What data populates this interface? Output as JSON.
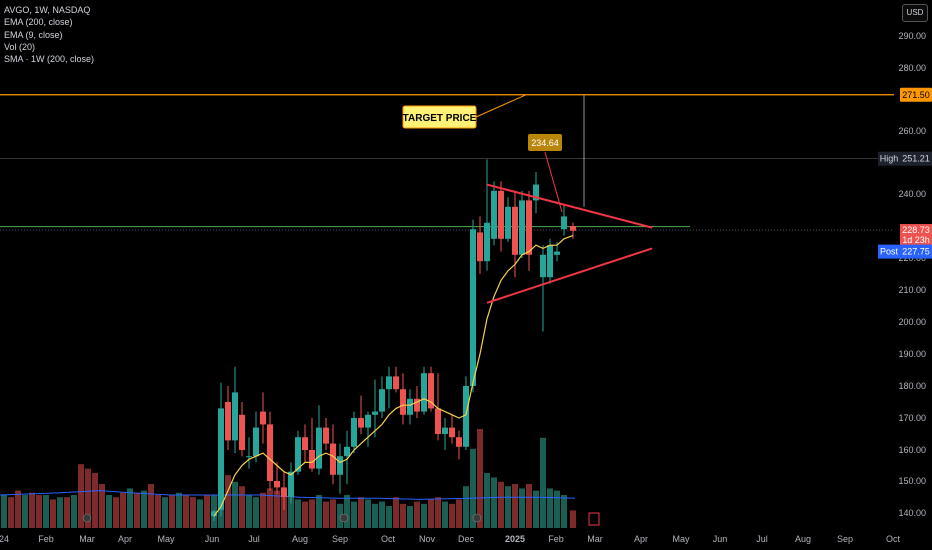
{
  "legend": {
    "symbol": "AVGO, 1W, NASDAQ",
    "ema200": "EMA (200, close)",
    "ema9": "EMA (9, close)",
    "vol": "Vol (20)",
    "sma": "SMA · 1W (200, close)"
  },
  "currency": "USD",
  "colors": {
    "up": "#26a69a",
    "down": "#ef5350",
    "vol_up": "#1b5e54",
    "vol_down": "#7c2a2a",
    "ema9": "#f6d24e",
    "vol_ma": "#2962ff",
    "target_line": "#ff9800",
    "green_line": "#4caf50",
    "triangle": "#f23645",
    "annotation_bg": "#fff176",
    "price_label_bg": "#b8860b"
  },
  "chart_data": {
    "type": "candlestick",
    "x_axis_labels": [
      "24",
      "Feb",
      "Mar",
      "Apr",
      "May",
      "Jun",
      "Jul",
      "Aug",
      "Sep",
      "Oct",
      "Nov",
      "Dec",
      "2025",
      "Feb",
      "Mar",
      "Apr",
      "May",
      "Jun",
      "Jul",
      "Aug",
      "Sep",
      "Oct"
    ],
    "y_ticks": [
      140,
      150,
      160,
      170,
      180,
      190,
      200,
      210,
      220,
      240,
      260,
      280,
      290
    ],
    "ylim": [
      137,
      297
    ],
    "weeks": [
      {
        "x": 214,
        "o": 139,
        "h": 141,
        "l": 137.5,
        "c": 140.5,
        "v": 0.3
      },
      {
        "x": 221,
        "o": 141,
        "h": 181,
        "l": 139,
        "c": 173,
        "v": 0.55
      },
      {
        "x": 228,
        "o": 175,
        "h": 180,
        "l": 160,
        "c": 163,
        "v": 0.48
      },
      {
        "x": 235,
        "o": 163,
        "h": 186,
        "l": 159,
        "c": 178,
        "v": 0.42
      },
      {
        "x": 242,
        "o": 171,
        "h": 175,
        "l": 158,
        "c": 160,
        "v": 0.38
      },
      {
        "x": 249,
        "o": 158,
        "h": 164,
        "l": 154,
        "c": 158,
        "v": 0.3
      },
      {
        "x": 256,
        "o": 158,
        "h": 172,
        "l": 156,
        "c": 167,
        "v": 0.28
      },
      {
        "x": 263,
        "o": 172,
        "h": 178,
        "l": 162,
        "c": 168,
        "v": 0.32
      },
      {
        "x": 270,
        "o": 168,
        "h": 172,
        "l": 147,
        "c": 150,
        "v": 0.36
      },
      {
        "x": 277,
        "o": 150,
        "h": 156,
        "l": 146,
        "c": 148,
        "v": 0.34
      },
      {
        "x": 284,
        "o": 148,
        "h": 153,
        "l": 141,
        "c": 145,
        "v": 0.3
      },
      {
        "x": 291,
        "o": 145,
        "h": 156,
        "l": 143,
        "c": 153,
        "v": 0.28
      },
      {
        "x": 298,
        "o": 153,
        "h": 166,
        "l": 152,
        "c": 164,
        "v": 0.26
      },
      {
        "x": 305,
        "o": 164,
        "h": 168,
        "l": 156,
        "c": 160,
        "v": 0.24
      },
      {
        "x": 312,
        "o": 160,
        "h": 170,
        "l": 153,
        "c": 154,
        "v": 0.26
      },
      {
        "x": 319,
        "o": 154,
        "h": 174,
        "l": 152,
        "c": 167,
        "v": 0.3
      },
      {
        "x": 326,
        "o": 167,
        "h": 170,
        "l": 160,
        "c": 162,
        "v": 0.24
      },
      {
        "x": 333,
        "o": 162,
        "h": 168,
        "l": 149,
        "c": 152,
        "v": 0.26
      },
      {
        "x": 340,
        "o": 152,
        "h": 162,
        "l": 146,
        "c": 158,
        "v": 0.22
      },
      {
        "x": 347,
        "o": 158,
        "h": 166,
        "l": 149,
        "c": 161,
        "v": 0.3
      },
      {
        "x": 354,
        "o": 161,
        "h": 172,
        "l": 159,
        "c": 170,
        "v": 0.24
      },
      {
        "x": 361,
        "o": 170,
        "h": 177,
        "l": 165,
        "c": 167,
        "v": 0.28
      },
      {
        "x": 368,
        "o": 167,
        "h": 172,
        "l": 161,
        "c": 171,
        "v": 0.26
      },
      {
        "x": 375,
        "o": 171,
        "h": 182,
        "l": 164,
        "c": 172,
        "v": 0.22
      },
      {
        "x": 382,
        "o": 172,
        "h": 183,
        "l": 170,
        "c": 179,
        "v": 0.24
      },
      {
        "x": 389,
        "o": 179,
        "h": 186,
        "l": 173,
        "c": 183,
        "v": 0.2
      },
      {
        "x": 396,
        "o": 183,
        "h": 186,
        "l": 178,
        "c": 179,
        "v": 0.28
      },
      {
        "x": 403,
        "o": 179,
        "h": 184,
        "l": 168,
        "c": 171,
        "v": 0.22
      },
      {
        "x": 410,
        "o": 171,
        "h": 179,
        "l": 168,
        "c": 176,
        "v": 0.2
      },
      {
        "x": 417,
        "o": 176,
        "h": 180,
        "l": 170,
        "c": 172,
        "v": 0.24
      },
      {
        "x": 424,
        "o": 172,
        "h": 186,
        "l": 171,
        "c": 184,
        "v": 0.22
      },
      {
        "x": 431,
        "o": 184,
        "h": 186,
        "l": 172,
        "c": 173,
        "v": 0.26
      },
      {
        "x": 438,
        "o": 173,
        "h": 184,
        "l": 163,
        "c": 165,
        "v": 0.28
      },
      {
        "x": 445,
        "o": 165,
        "h": 170,
        "l": 160,
        "c": 167,
        "v": 0.24
      },
      {
        "x": 452,
        "o": 167,
        "h": 171,
        "l": 162,
        "c": 164,
        "v": 0.22
      },
      {
        "x": 459,
        "o": 164,
        "h": 166,
        "l": 157,
        "c": 161,
        "v": 0.26
      },
      {
        "x": 466,
        "o": 161,
        "h": 183,
        "l": 160,
        "c": 180,
        "v": 0.38
      },
      {
        "x": 473,
        "o": 180,
        "h": 232,
        "l": 178,
        "c": 229,
        "v": 0.72
      },
      {
        "x": 480,
        "o": 228,
        "h": 233,
        "l": 215,
        "c": 219,
        "v": 0.9
      },
      {
        "x": 487,
        "o": 219,
        "h": 251,
        "l": 216,
        "c": 231,
        "v": 0.5
      },
      {
        "x": 494,
        "o": 226,
        "h": 244,
        "l": 224,
        "c": 241,
        "v": 0.46
      },
      {
        "x": 501,
        "o": 241,
        "h": 244,
        "l": 222,
        "c": 226,
        "v": 0.42
      },
      {
        "x": 508,
        "o": 226,
        "h": 239,
        "l": 225,
        "c": 236,
        "v": 0.38
      },
      {
        "x": 515,
        "o": 236,
        "h": 241,
        "l": 214,
        "c": 221,
        "v": 0.4
      },
      {
        "x": 522,
        "o": 221,
        "h": 241,
        "l": 220,
        "c": 238,
        "v": 0.36
      },
      {
        "x": 529,
        "o": 238,
        "h": 241,
        "l": 216,
        "c": 221,
        "v": 0.4
      },
      {
        "x": 536,
        "o": 238,
        "h": 247,
        "l": 234,
        "c": 243,
        "v": 0.34
      },
      {
        "x": 543,
        "o": 214,
        "h": 224,
        "l": 197,
        "c": 221,
        "v": 0.82
      },
      {
        "x": 550,
        "o": 214,
        "h": 226,
        "l": 212,
        "c": 224,
        "v": 0.36
      },
      {
        "x": 557,
        "o": 221,
        "h": 225,
        "l": 219,
        "c": 222,
        "v": 0.34
      },
      {
        "x": 564,
        "o": 229,
        "h": 237,
        "l": 227,
        "c": 233,
        "v": 0.3
      },
      {
        "x": 573,
        "o": 230,
        "h": 231,
        "l": 226,
        "c": 228.5,
        "v": 0.16
      }
    ],
    "ema9": [
      [
        214,
        139
      ],
      [
        221,
        142
      ],
      [
        228,
        147
      ],
      [
        235,
        152
      ],
      [
        242,
        155
      ],
      [
        249,
        157
      ],
      [
        256,
        158
      ],
      [
        263,
        159
      ],
      [
        270,
        157
      ],
      [
        277,
        155
      ],
      [
        284,
        153
      ],
      [
        291,
        152
      ],
      [
        298,
        154
      ],
      [
        305,
        156
      ],
      [
        312,
        156
      ],
      [
        319,
        158
      ],
      [
        326,
        159
      ],
      [
        333,
        158
      ],
      [
        340,
        156
      ],
      [
        347,
        157
      ],
      [
        354,
        160
      ],
      [
        361,
        162
      ],
      [
        368,
        164
      ],
      [
        375,
        166
      ],
      [
        382,
        168
      ],
      [
        389,
        171
      ],
      [
        396,
        173
      ],
      [
        403,
        174
      ],
      [
        410,
        174
      ],
      [
        417,
        175
      ],
      [
        424,
        176
      ],
      [
        431,
        175
      ],
      [
        438,
        173
      ],
      [
        445,
        172
      ],
      [
        452,
        171
      ],
      [
        459,
        170
      ],
      [
        466,
        171
      ],
      [
        473,
        181
      ],
      [
        480,
        190
      ],
      [
        487,
        201
      ],
      [
        494,
        208
      ],
      [
        501,
        213
      ],
      [
        508,
        216
      ],
      [
        515,
        218
      ],
      [
        522,
        221
      ],
      [
        529,
        222
      ],
      [
        536,
        224
      ],
      [
        543,
        223
      ],
      [
        550,
        224
      ],
      [
        557,
        224
      ],
      [
        564,
        226
      ],
      [
        573,
        227
      ]
    ],
    "vol_ma": [
      [
        0,
        0.3
      ],
      [
        60,
        0.32
      ],
      [
        100,
        0.34
      ],
      [
        130,
        0.32
      ],
      [
        170,
        0.3
      ],
      [
        214,
        0.3
      ],
      [
        260,
        0.3
      ],
      [
        300,
        0.28
      ],
      [
        340,
        0.27
      ],
      [
        380,
        0.27
      ],
      [
        420,
        0.26
      ],
      [
        470,
        0.27
      ],
      [
        500,
        0.28
      ],
      [
        540,
        0.28
      ],
      [
        575,
        0.27
      ]
    ],
    "vol_bars_left": [
      {
        "x": 4,
        "v": 0.3,
        "up": true
      },
      {
        "x": 11,
        "v": 0.28,
        "up": false
      },
      {
        "x": 18,
        "v": 0.34,
        "up": false
      },
      {
        "x": 25,
        "v": 0.3,
        "up": true
      },
      {
        "x": 32,
        "v": 0.32,
        "up": false
      },
      {
        "x": 39,
        "v": 0.3,
        "up": false
      },
      {
        "x": 46,
        "v": 0.3,
        "up": true
      },
      {
        "x": 53,
        "v": 0.26,
        "up": false
      },
      {
        "x": 60,
        "v": 0.28,
        "up": true
      },
      {
        "x": 67,
        "v": 0.28,
        "up": false
      },
      {
        "x": 74,
        "v": 0.3,
        "up": true
      },
      {
        "x": 81,
        "v": 0.58,
        "up": false
      },
      {
        "x": 88,
        "v": 0.54,
        "up": false
      },
      {
        "x": 95,
        "v": 0.5,
        "up": false
      },
      {
        "x": 102,
        "v": 0.4,
        "up": false
      },
      {
        "x": 109,
        "v": 0.3,
        "up": true
      },
      {
        "x": 116,
        "v": 0.28,
        "up": false
      },
      {
        "x": 123,
        "v": 0.32,
        "up": false
      },
      {
        "x": 130,
        "v": 0.36,
        "up": true
      },
      {
        "x": 137,
        "v": 0.32,
        "up": false
      },
      {
        "x": 144,
        "v": 0.34,
        "up": true
      },
      {
        "x": 151,
        "v": 0.4,
        "up": false
      },
      {
        "x": 158,
        "v": 0.3,
        "up": false
      },
      {
        "x": 165,
        "v": 0.28,
        "up": true
      },
      {
        "x": 172,
        "v": 0.3,
        "up": false
      },
      {
        "x": 179,
        "v": 0.32,
        "up": true
      },
      {
        "x": 186,
        "v": 0.3,
        "up": false
      },
      {
        "x": 193,
        "v": 0.28,
        "up": false
      },
      {
        "x": 200,
        "v": 0.26,
        "up": true
      },
      {
        "x": 207,
        "v": 0.3,
        "up": false
      }
    ],
    "resistance_top": 271.5,
    "green_level": 229.8,
    "current_line": 228.73,
    "high_line": 251.21,
    "spike": {
      "x": 584,
      "from": 236,
      "to": 271.5
    },
    "triangle_upper": [
      [
        487,
        243
      ],
      [
        652,
        229.5
      ]
    ],
    "triangle_lower": [
      [
        487,
        206
      ],
      [
        652,
        223
      ]
    ],
    "price_labels": {
      "target": "271.50",
      "high": "High",
      "high_val": "251.21",
      "current": "228.73",
      "countdown": "1d 23h",
      "post": "Post",
      "post_val": "227.75"
    },
    "annotations": {
      "target_price": "TARGET PRICE",
      "peak_label": "234.64"
    }
  }
}
